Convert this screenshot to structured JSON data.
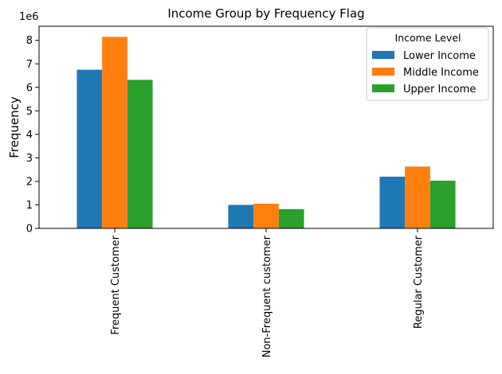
{
  "chart_data": {
    "type": "bar",
    "title": "Income Group by Frequency Flag",
    "xlabel": "",
    "ylabel": "Frequency",
    "y_scale_label": "1e6",
    "ylim": [
      0,
      8.6
    ],
    "yticks": [
      0,
      1,
      2,
      3,
      4,
      5,
      6,
      7,
      8
    ],
    "categories": [
      "Frequent Customer",
      "Non-Frequent customer",
      "Regular Customer"
    ],
    "series": [
      {
        "name": "Lower Income",
        "color": "#1f77b4",
        "values": [
          6.75,
          1.0,
          2.2
        ]
      },
      {
        "name": "Middle Income",
        "color": "#ff7f0e",
        "values": [
          8.15,
          1.05,
          2.63
        ]
      },
      {
        "name": "Upper Income",
        "color": "#2ca02c",
        "values": [
          6.32,
          0.82,
          2.03
        ]
      }
    ],
    "legend": {
      "title": "Income Level",
      "position": "top-right"
    },
    "grid": false
  }
}
